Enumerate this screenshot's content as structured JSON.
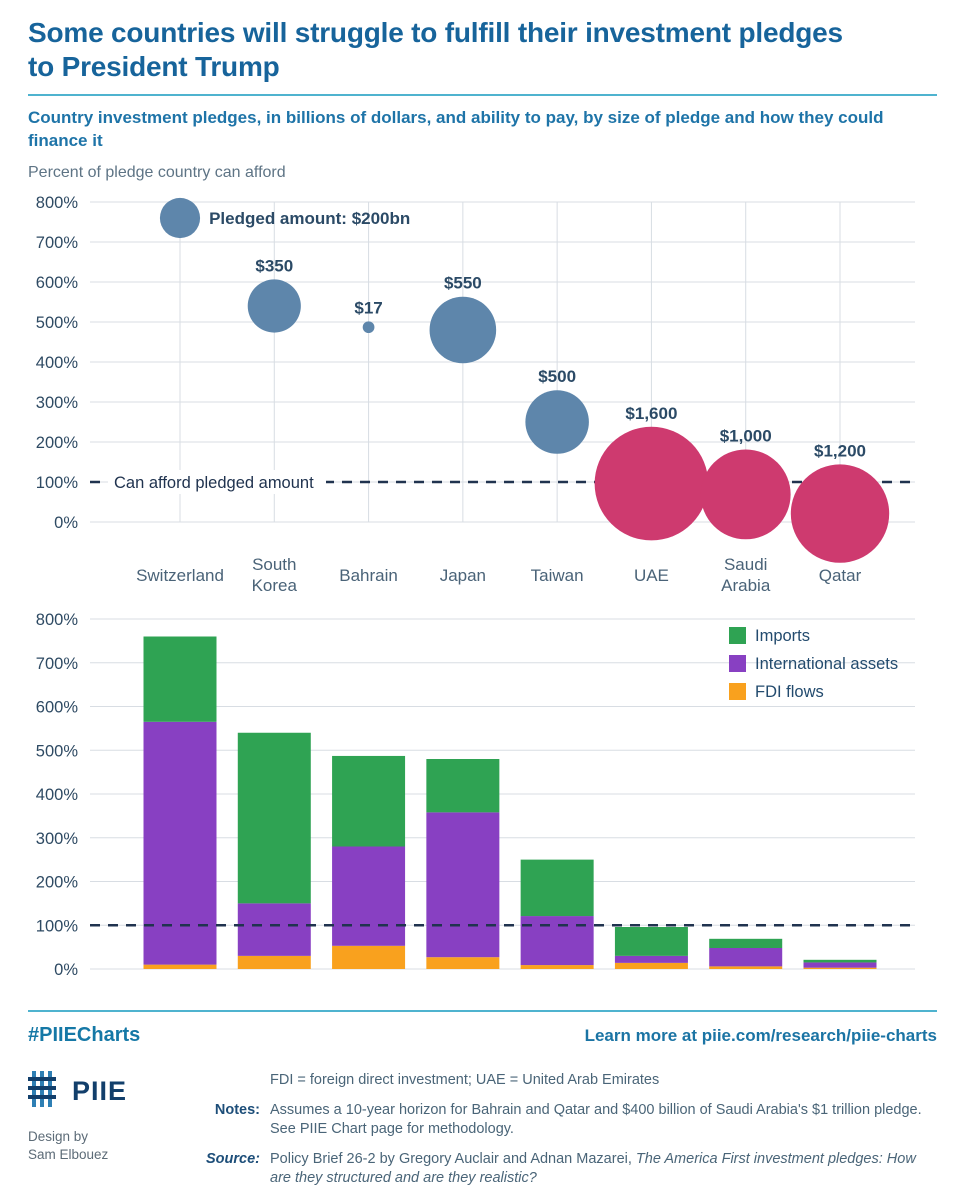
{
  "header": {
    "title": "Some countries will struggle to fulfill their investment pledges to President Trump",
    "subtitle": "Country investment pledges, in billions of dollars, and ability to pay, by size of pledge and how they could finance it",
    "axis_caption": "Percent of pledge country can afford"
  },
  "colors": {
    "title": "#17649B",
    "subtitle": "#1E74A8",
    "caption": "#5E7485",
    "accent_rule": "#4FB3CF",
    "grid": "#D8DDE3",
    "tick_text": "#2E4A63",
    "category_text": "#4A6378",
    "bubble_label": "#2B4A66",
    "affordable_bubble": "#5E86AB",
    "unaffordable_bubble": "#CE3A6F",
    "imports": "#2FA353",
    "international_assets": "#8840C2",
    "fdi_flows": "#F9A11E",
    "threshold_line": "#20334F",
    "legend_text": "#234B6E",
    "hashtag": "#1578A6",
    "learn_more": "#1B74A4",
    "logo_navy": "#123F6B"
  },
  "chart_data": [
    {
      "type": "scatter",
      "variant": "bubble",
      "ylabel": "Percent of pledge country can afford",
      "ylim": [
        0,
        800
      ],
      "ytick_step": 100,
      "ytick_suffix": "%",
      "grid": true,
      "categories": [
        "Switzerland",
        "South Korea",
        "Bahrain",
        "Japan",
        "Taiwan",
        "UAE",
        "Saudi Arabia",
        "Qatar"
      ],
      "points": [
        {
          "country": "Switzerland",
          "percent": 760,
          "pledge_bn": 200,
          "label": "Pledged amount: $200bn",
          "label_side": "right",
          "affordable": true
        },
        {
          "country": "South Korea",
          "percent": 540,
          "pledge_bn": 350,
          "label": "$350",
          "label_side": "top",
          "affordable": true
        },
        {
          "country": "Bahrain",
          "percent": 487,
          "pledge_bn": 17,
          "label": "$17",
          "label_side": "top",
          "affordable": true
        },
        {
          "country": "Japan",
          "percent": 480,
          "pledge_bn": 550,
          "label": "$550",
          "label_side": "top",
          "affordable": true
        },
        {
          "country": "Taiwan",
          "percent": 250,
          "pledge_bn": 500,
          "label": "$500",
          "label_side": "top",
          "affordable": true
        },
        {
          "country": "UAE",
          "percent": 96,
          "pledge_bn": 1600,
          "label": "$1,600",
          "label_side": "top",
          "affordable": false
        },
        {
          "country": "Saudi Arabia",
          "percent": 69,
          "pledge_bn": 1000,
          "label": "$1,000",
          "label_side": "top",
          "affordable": false
        },
        {
          "country": "Qatar",
          "percent": 21,
          "pledge_bn": 1200,
          "label": "$1,200",
          "label_side": "top",
          "affordable": false
        }
      ],
      "threshold": {
        "value": 100,
        "label": "Can afford pledged amount"
      }
    },
    {
      "type": "bar",
      "stacked": true,
      "ylim": [
        0,
        800
      ],
      "ytick_step": 100,
      "ytick_suffix": "%",
      "grid": true,
      "legend_position": "top-right",
      "categories": [
        "Switzerland",
        "South Korea",
        "Bahrain",
        "Japan",
        "Taiwan",
        "UAE",
        "Saudi Arabia",
        "Qatar"
      ],
      "series": [
        {
          "name": "FDI flows",
          "color_key": "fdi_flows",
          "values": [
            10,
            30,
            53,
            27,
            9,
            14,
            6,
            3
          ]
        },
        {
          "name": "International assets",
          "color_key": "international_assets",
          "values": [
            555,
            120,
            227,
            331,
            112,
            16,
            42,
            12
          ]
        },
        {
          "name": "Imports",
          "color_key": "imports",
          "values": [
            195,
            390,
            207,
            122,
            129,
            66,
            21,
            6
          ]
        }
      ],
      "legend": [
        {
          "label": "Imports",
          "color_key": "imports"
        },
        {
          "label": "International assets",
          "color_key": "international_assets"
        },
        {
          "label": "FDI flows",
          "color_key": "fdi_flows"
        }
      ],
      "threshold": {
        "value": 100
      }
    }
  ],
  "footer": {
    "hashtag": "#PIIECharts",
    "learn_more": "Learn more at piie.com/research/piie-charts",
    "logo_text": "PIIE",
    "design_by_line1": "Design by",
    "design_by_line2": "Sam Elbouez",
    "definitions": "FDI = foreign direct investment; UAE = United Arab Emirates",
    "notes_label": "Notes:",
    "notes_text": "Assumes a 10-year horizon for Bahrain and Qatar and $400 billion of Saudi Arabia's $1 trillion pledge. See PIIE Chart page for methodology.",
    "source_label": "Source:",
    "source_text": "Policy Brief 26-2 by Gregory Auclair and Adnan Mazarei, ",
    "source_italic": "The America First investment pledges: How are they structured and are they realistic?"
  }
}
